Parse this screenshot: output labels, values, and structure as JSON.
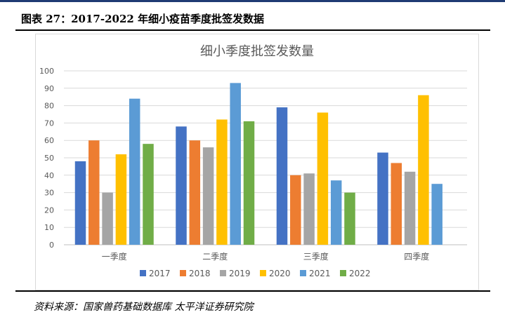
{
  "figure_label": "图表 27：2017-2022 年细小疫苗季度批签发数据",
  "source_note": "资料来源：国家兽药基础数据库 太平洋证券研究院",
  "colors": {
    "2017": "#4472c4",
    "2018": "#ed7d31",
    "2019": "#a5a5a5",
    "2020": "#ffc000",
    "2021": "#5b9bd5",
    "2022": "#70ad47"
  },
  "chart_data": {
    "type": "bar",
    "title": "细小季度批签发数量",
    "xlabel": "",
    "ylabel": "",
    "ylim": [
      0,
      100
    ],
    "yticks": [
      0,
      10,
      20,
      30,
      40,
      50,
      60,
      70,
      80,
      90,
      100
    ],
    "grid": true,
    "legend_position": "bottom",
    "categories": [
      "一季度",
      "二季度",
      "三季度",
      "四季度"
    ],
    "series": [
      {
        "name": "2017",
        "values": [
          48,
          68,
          79,
          53
        ]
      },
      {
        "name": "2018",
        "values": [
          60,
          60,
          40,
          47
        ]
      },
      {
        "name": "2019",
        "values": [
          30,
          56,
          41,
          42
        ]
      },
      {
        "name": "2020",
        "values": [
          52,
          72,
          76,
          86
        ]
      },
      {
        "name": "2021",
        "values": [
          84,
          93,
          37,
          35
        ]
      },
      {
        "name": "2022",
        "values": [
          58,
          71,
          30,
          null
        ]
      }
    ]
  }
}
